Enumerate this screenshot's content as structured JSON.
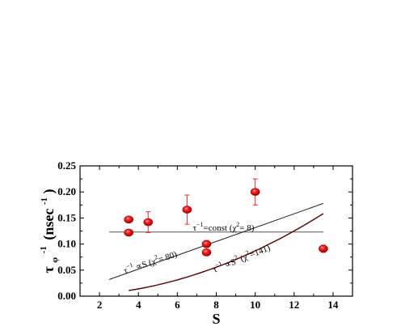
{
  "chart_data": {
    "type": "scatter",
    "xlabel": "S",
    "ylabel": "τφ-1 (nsec-1)",
    "ylabel_parts": {
      "tau": "τ",
      "sub": "φ",
      "sup": "-1",
      "unit": "(nsec",
      "unit_sup": "-1",
      "close": ")"
    },
    "xlim": [
      1,
      15
    ],
    "ylim": [
      0,
      0.25
    ],
    "xticks": [
      2,
      4,
      6,
      8,
      10,
      12,
      14
    ],
    "yticks": [
      0.0,
      0.05,
      0.1,
      0.15,
      0.2,
      0.25
    ],
    "grid": false,
    "series": [
      {
        "marker": "circle",
        "color": "#e81010",
        "points": [
          {
            "x": 3.5,
            "y": 0.147,
            "err": 0.004
          },
          {
            "x": 3.5,
            "y": 0.122,
            "err": 0.004
          },
          {
            "x": 4.5,
            "y": 0.142,
            "err": 0.02
          },
          {
            "x": 6.5,
            "y": 0.166,
            "err": 0.028
          },
          {
            "x": 7.5,
            "y": 0.1,
            "err": 0.007
          },
          {
            "x": 7.5,
            "y": 0.084,
            "err": 0.004
          },
          {
            "x": 10.0,
            "y": 0.2,
            "err": 0.025
          },
          {
            "x": 13.5,
            "y": 0.091,
            "err": 0.007
          }
        ]
      }
    ],
    "fits": [
      {
        "label": "τ−1=const (χ2= 8)",
        "model": "const",
        "x": [
          2.5,
          13.5
        ],
        "y": [
          0.123,
          0.123
        ],
        "color": "#555555"
      },
      {
        "label": "τ−1 ∝S (χ2= 80)",
        "model": "linear",
        "x": [
          2.5,
          13.5
        ],
        "y": [
          0.032,
          0.178
        ],
        "color": "#222222"
      },
      {
        "label": "τ−1 ∝S2 (χ2=141)",
        "model": "quadratic",
        "x": [
          3.5,
          13.5
        ],
        "coef": 0.000869,
        "color": "#5a0000"
      }
    ],
    "annotations": {
      "const": {
        "tau": "τ",
        "sup1": "−1",
        "eq": "=const (χ",
        "sup2": "2",
        "tail": "= 8)"
      },
      "linear": {
        "tau": "τ",
        "sup1": "−1",
        "rel": " ∝S (χ",
        "sup2": "2",
        "tail": "= 80)"
      },
      "quad": {
        "tau": "τ",
        "sup1": "−1",
        "rel": " ∝S",
        "sup2": "2",
        "mid": " (χ",
        "sup3": "2",
        "tail": "=141)"
      }
    }
  }
}
